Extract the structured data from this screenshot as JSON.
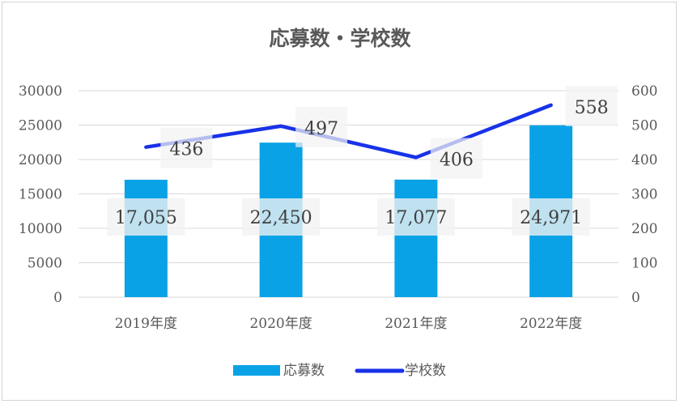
{
  "chart_data": {
    "type": "bar+line",
    "title": "応募数・学校数",
    "categories": [
      "2019年度",
      "2020年度",
      "2021年度",
      "2022年度"
    ],
    "series": [
      {
        "name": "応募数",
        "type": "bar",
        "axis": "left",
        "values": [
          17055,
          22450,
          17077,
          24971
        ],
        "labels": [
          "17,055",
          "22,450",
          "17,077",
          "24,971"
        ]
      },
      {
        "name": "学校数",
        "type": "line",
        "axis": "right",
        "values": [
          436,
          497,
          406,
          558
        ],
        "labels": [
          "436",
          "497",
          "406",
          "558"
        ]
      }
    ],
    "y_left": {
      "min": 0,
      "max": 30000,
      "ticks": [
        "0",
        "5000",
        "10000",
        "15000",
        "20000",
        "25000",
        "30000"
      ]
    },
    "y_right": {
      "min": 0,
      "max": 600,
      "ticks": [
        "0",
        "100",
        "200",
        "300",
        "400",
        "500",
        "600"
      ]
    },
    "grid": true,
    "legend_position": "bottom",
    "colors": {
      "bar": "#0aa2e6",
      "line": "#1832e8",
      "grid": "#d9d9d9",
      "text": "#595959"
    }
  }
}
